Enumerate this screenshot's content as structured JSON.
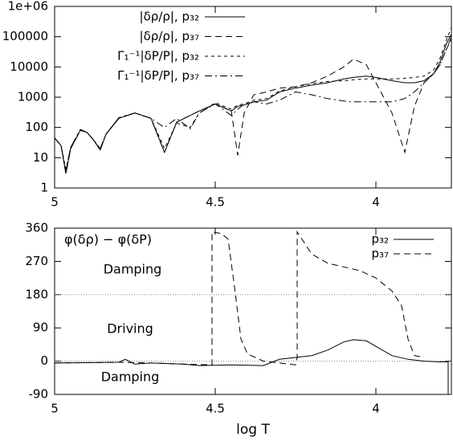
{
  "chart_data": [
    {
      "type": "line",
      "log_y": true,
      "xlim": [
        5,
        3.765
      ],
      "xticks": [
        5,
        4.5,
        4
      ],
      "ylim": [
        1,
        1000000
      ],
      "yticks": [
        1,
        10,
        100,
        1000,
        10000,
        100000,
        {
          "value": 1000000,
          "label": "1e+06"
        }
      ],
      "legend": "top-right",
      "series": [
        {
          "name": "|δρ/ρ|, p₃₂",
          "color": "#000000",
          "dash": "solid",
          "x": [
            5.0,
            4.98,
            4.965,
            4.95,
            4.92,
            4.9,
            4.88,
            4.858,
            4.84,
            4.8,
            4.75,
            4.7,
            4.658,
            4.62,
            4.578,
            4.55,
            4.5,
            4.45,
            4.43,
            4.41,
            4.38,
            4.34,
            4.3,
            4.25,
            4.2,
            4.15,
            4.1,
            4.07,
            4.03,
            4.0,
            3.95,
            3.91,
            3.88,
            3.85,
            3.82,
            3.8,
            3.78,
            3.765
          ],
          "values": [
            45,
            25,
            3,
            20,
            80,
            70,
            40,
            18,
            60,
            200,
            300,
            200,
            15,
            150,
            250,
            350,
            600,
            350,
            500,
            550,
            700,
            800,
            1500,
            2000,
            2500,
            3000,
            4000,
            4500,
            5000,
            4500,
            3500,
            3000,
            3000,
            3500,
            6000,
            15000,
            60000,
            120000
          ]
        },
        {
          "name": "|δρ/ρ|, p₃₇",
          "color": "#000000",
          "dash": "dashed",
          "x": [
            5.0,
            4.98,
            4.965,
            4.95,
            4.92,
            4.9,
            4.88,
            4.858,
            4.84,
            4.8,
            4.75,
            4.7,
            4.658,
            4.62,
            4.578,
            4.55,
            4.5,
            4.45,
            4.43,
            4.41,
            4.38,
            4.34,
            4.3,
            4.25,
            4.2,
            4.15,
            4.1,
            4.07,
            4.03,
            4.0,
            3.95,
            3.91,
            3.88,
            3.85,
            3.82,
            3.8,
            3.78,
            3.765
          ],
          "values": [
            45,
            25,
            3,
            20,
            80,
            70,
            40,
            18,
            60,
            200,
            300,
            200,
            15,
            150,
            250,
            350,
            600,
            350,
            12,
            300,
            1200,
            1500,
            2000,
            2200,
            3000,
            5000,
            10000,
            18000,
            12000,
            3000,
            300,
            15,
            500,
            3000,
            6000,
            12000,
            40000,
            80000
          ]
        },
        {
          "name": "Γ₁⁻¹|δP/P|, p₃₂",
          "color": "#000000",
          "dash": "dotted",
          "x": [
            5.0,
            4.98,
            4.965,
            4.95,
            4.92,
            4.9,
            4.88,
            4.858,
            4.84,
            4.8,
            4.75,
            4.7,
            4.658,
            4.62,
            4.578,
            4.55,
            4.5,
            4.45,
            4.43,
            4.41,
            4.38,
            4.34,
            4.3,
            4.25,
            4.2,
            4.15,
            4.1,
            4.07,
            4.03,
            4.0,
            3.95,
            3.91,
            3.88,
            3.85,
            3.82,
            3.8,
            3.78,
            3.765
          ],
          "values": [
            45,
            25,
            4,
            22,
            85,
            70,
            40,
            20,
            60,
            210,
            300,
            200,
            20,
            140,
            100,
            300,
            650,
            400,
            550,
            600,
            800,
            900,
            1600,
            2200,
            2800,
            3300,
            3500,
            3800,
            4000,
            4000,
            4000,
            4200,
            4500,
            5000,
            8000,
            20000,
            80000,
            200000
          ]
        },
        {
          "name": "Γ₁⁻¹|δP/P|, p₃₇",
          "color": "#000000",
          "dash": "dashdot",
          "x": [
            5.0,
            4.98,
            4.965,
            4.95,
            4.92,
            4.9,
            4.88,
            4.858,
            4.84,
            4.8,
            4.75,
            4.7,
            4.658,
            4.62,
            4.578,
            4.55,
            4.5,
            4.45,
            4.43,
            4.41,
            4.38,
            4.34,
            4.3,
            4.25,
            4.2,
            4.15,
            4.1,
            4.07,
            4.03,
            4.0,
            3.95,
            3.91,
            3.88,
            3.85,
            3.82,
            3.8,
            3.78,
            3.765
          ],
          "values": [
            45,
            25,
            4,
            22,
            85,
            70,
            40,
            20,
            60,
            210,
            300,
            200,
            100,
            200,
            90,
            300,
            600,
            250,
            400,
            600,
            700,
            600,
            800,
            1500,
            1200,
            900,
            750,
            700,
            700,
            700,
            700,
            900,
            1500,
            3000,
            6000,
            12000,
            40000,
            100000
          ]
        }
      ]
    },
    {
      "type": "line",
      "log_y": false,
      "xlim": [
        5,
        3.765
      ],
      "xticks": [
        5,
        4.5,
        4
      ],
      "ylim": [
        -90,
        360
      ],
      "yticks": [
        -90,
        0,
        90,
        180,
        270,
        360
      ],
      "xlabel": "log T",
      "reference_lines": [
        0,
        180
      ],
      "legend": "top-right",
      "annotations": [
        "φ(δρ) − φ(δP)",
        "Damping",
        "Driving",
        "Damping"
      ],
      "series": [
        {
          "name": "p₃₂",
          "color": "#000000",
          "dash": "solid",
          "x": [
            5.0,
            4.8,
            4.78,
            4.75,
            4.7,
            4.6,
            4.55,
            4.45,
            4.35,
            4.3,
            4.25,
            4.2,
            4.15,
            4.1,
            4.07,
            4.03,
            4.0,
            3.95,
            3.9,
            3.85,
            3.8,
            3.775,
            3.775
          ],
          "values": [
            -5,
            -3,
            5,
            -8,
            -5,
            -8,
            -12,
            -10,
            -12,
            5,
            10,
            15,
            30,
            52,
            58,
            55,
            40,
            15,
            5,
            0,
            -2,
            -2,
            -90
          ]
        },
        {
          "name": "p₃₇",
          "color": "#000000",
          "dash": "dashed",
          "x": [
            5.0,
            4.8,
            4.7,
            4.6,
            4.51,
            4.51,
            4.48,
            4.46,
            4.44,
            4.42,
            4.4,
            4.35,
            4.3,
            4.25,
            4.245,
            4.245,
            4.2,
            4.15,
            4.1,
            4.05,
            4.0,
            3.95,
            3.92,
            3.9,
            3.88,
            3.85
          ],
          "values": [
            -5,
            -3,
            -5,
            -8,
            -10,
            350,
            345,
            330,
            200,
            60,
            20,
            0,
            -5,
            -10,
            10,
            350,
            290,
            265,
            255,
            245,
            225,
            190,
            150,
            60,
            15,
            10
          ]
        }
      ]
    }
  ]
}
